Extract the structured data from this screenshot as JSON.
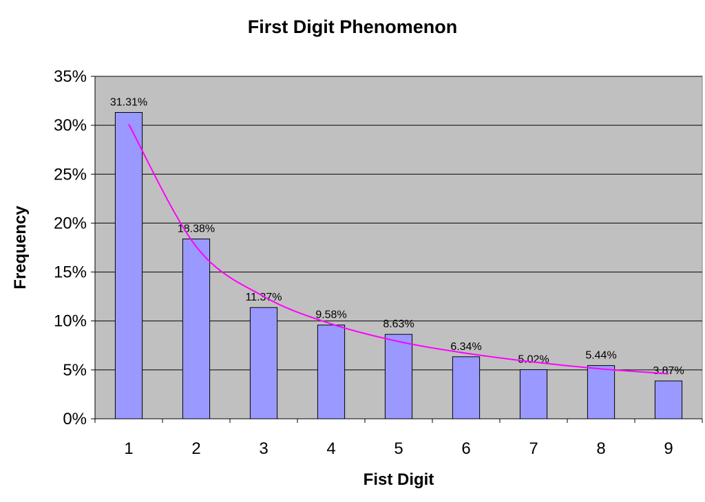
{
  "chart_data": {
    "type": "bar",
    "title": "First Digit Phenomenon",
    "xlabel": "Fist Digit",
    "ylabel": "Frequency",
    "categories": [
      "1",
      "2",
      "3",
      "4",
      "5",
      "6",
      "7",
      "8",
      "9"
    ],
    "series": [
      {
        "type": "bar",
        "values": [
          31.31,
          18.38,
          11.37,
          9.58,
          8.63,
          6.34,
          5.02,
          5.44,
          3.87
        ],
        "data_labels": [
          "31.31%",
          "18.38%",
          "11.37%",
          "9.58%",
          "8.63%",
          "6.34%",
          "5.02%",
          "5.44%",
          "3.87%"
        ],
        "color": "#9999ff"
      },
      {
        "type": "line",
        "values": [
          30.1,
          17.6,
          12.5,
          9.7,
          7.9,
          6.7,
          5.8,
          5.1,
          4.6
        ],
        "color": "#ff00ff"
      }
    ],
    "ylim": [
      0,
      35
    ],
    "yticks": [
      0,
      5,
      10,
      15,
      20,
      25,
      30,
      35
    ],
    "ytick_labels": [
      "0%",
      "5%",
      "10%",
      "15%",
      "20%",
      "25%",
      "30%",
      "35%"
    ],
    "grid": true,
    "plot_background": "#c0c0c0",
    "legend": "none"
  }
}
